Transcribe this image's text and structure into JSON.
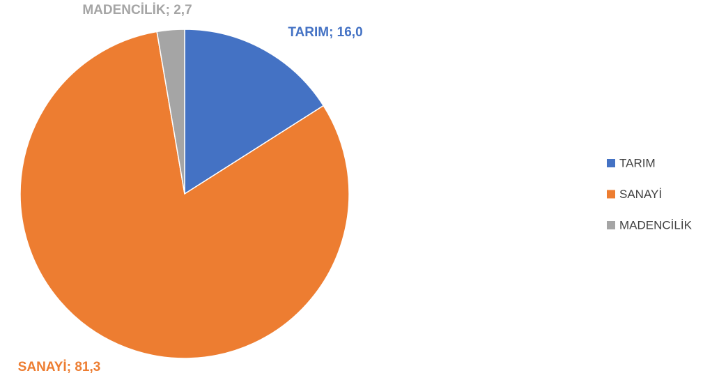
{
  "chart_data": {
    "type": "pie",
    "categories": [
      "TARIM",
      "SANAYİ",
      "MADENCİLİK"
    ],
    "values": [
      16.0,
      81.3,
      2.7
    ],
    "value_labels": [
      "TARIM; 16,0",
      "SANAYİ; 81,3",
      "MADENCİLİK; 2,7"
    ],
    "colors": [
      "#4472c4",
      "#ed7d31",
      "#a5a5a5"
    ],
    "legend": "right"
  }
}
